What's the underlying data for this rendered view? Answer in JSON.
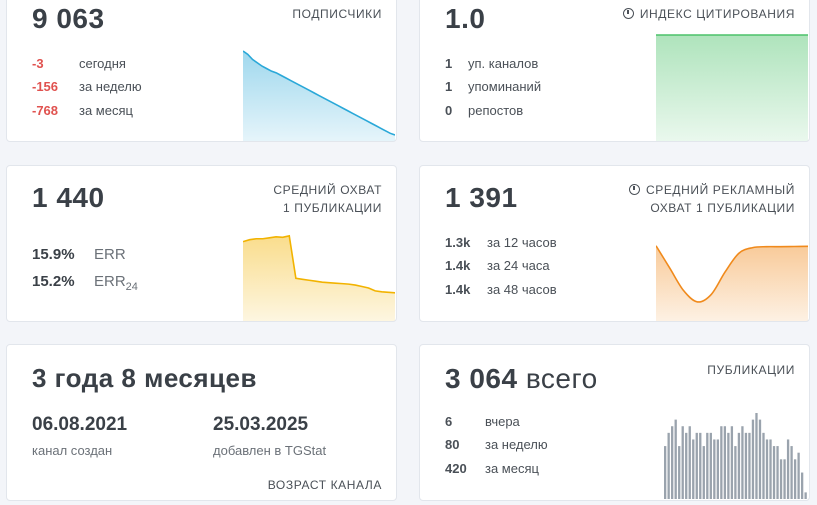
{
  "subscribers": {
    "value": "9 063",
    "header": "ПОДПИСЧИКИ",
    "rows": [
      {
        "value": "-3",
        "label": "сегодня"
      },
      {
        "value": "-156",
        "label": "за неделю"
      },
      {
        "value": "-768",
        "label": "за месяц"
      }
    ],
    "color": "#2aa8d8"
  },
  "citation": {
    "value": "1.0",
    "header": "ИНДЕКС ЦИТИРОВАНИЯ",
    "icon": "clock-icon",
    "rows": [
      {
        "value": "1",
        "label": "уп. каналов"
      },
      {
        "value": "1",
        "label": "упоминаний"
      },
      {
        "value": "0",
        "label": "репостов"
      }
    ],
    "color": "#4cc26a"
  },
  "reach": {
    "value": "1 440",
    "header_line1": "СРЕДНИЙ ОХВАТ",
    "header_line2": "1 ПУБЛИКАЦИИ",
    "err_value": "15.9%",
    "err_label": "ERR",
    "err24_value": "15.2%",
    "err24_label": "ERR",
    "err24_sub": "24",
    "color": "#f2b300"
  },
  "ad_reach": {
    "value": "1 391",
    "header_line1": "СРЕДНИЙ РЕКЛАМНЫЙ",
    "header_line2": "ОХВАТ 1 ПУБЛИКАЦИИ",
    "icon": "clock-icon",
    "rows": [
      {
        "value": "1.3k",
        "label": "за 12 часов"
      },
      {
        "value": "1.4k",
        "label": "за 24 часа"
      },
      {
        "value": "1.4k",
        "label": "за 48 часов"
      }
    ],
    "color": "#f08a1c"
  },
  "age": {
    "value": "3 года 8 месяцев",
    "created_date": "06.08.2021",
    "created_label": "канал создан",
    "added_date": "25.03.2025",
    "added_label": "добавлен в TGStat",
    "footer": "ВОЗРАСТ КАНАЛА"
  },
  "publications": {
    "value": "3 064",
    "value_suffix": "всего",
    "header": "ПУБЛИКАЦИИ",
    "rows": [
      {
        "value": "6",
        "label": "вчера"
      },
      {
        "value": "80",
        "label": "за неделю"
      },
      {
        "value": "420",
        "label": "за месяц"
      }
    ],
    "color": "#9aa3ad"
  },
  "chart_data": [
    {
      "type": "area",
      "name": "subscribers",
      "values": [
        100,
        96,
        90,
        86,
        82,
        79,
        76,
        74,
        71,
        68,
        65,
        62,
        59,
        56,
        53,
        50,
        47,
        44,
        41,
        38,
        35,
        32,
        29,
        26,
        23,
        20,
        17,
        14,
        11,
        8,
        5,
        2,
        0
      ]
    },
    {
      "type": "area",
      "name": "citation_index",
      "values": [
        1.0,
        1.0
      ]
    },
    {
      "type": "area",
      "name": "average_reach",
      "values": [
        1660,
        1680,
        1690,
        1690,
        1700,
        1710,
        1705,
        1720,
        1280,
        1270,
        1260,
        1250,
        1240,
        1235,
        1230,
        1225,
        1220,
        1210,
        1195,
        1180,
        1150,
        1140,
        1135,
        1130
      ]
    },
    {
      "type": "area",
      "name": "ad_reach",
      "values": [
        1420,
        1300,
        1180,
        1120,
        1160,
        1280,
        1380,
        1410,
        1415,
        1415,
        1416,
        1417
      ]
    },
    {
      "type": "bar",
      "name": "publications",
      "values": [
        8,
        10,
        11,
        12,
        8,
        11,
        10,
        11,
        9,
        10,
        10,
        8,
        10,
        10,
        9,
        9,
        11,
        11,
        10,
        11,
        8,
        10,
        11,
        10,
        10,
        12,
        13,
        12,
        10,
        9,
        9,
        8,
        8,
        6,
        6,
        9,
        8,
        6,
        7,
        4,
        1
      ]
    }
  ]
}
